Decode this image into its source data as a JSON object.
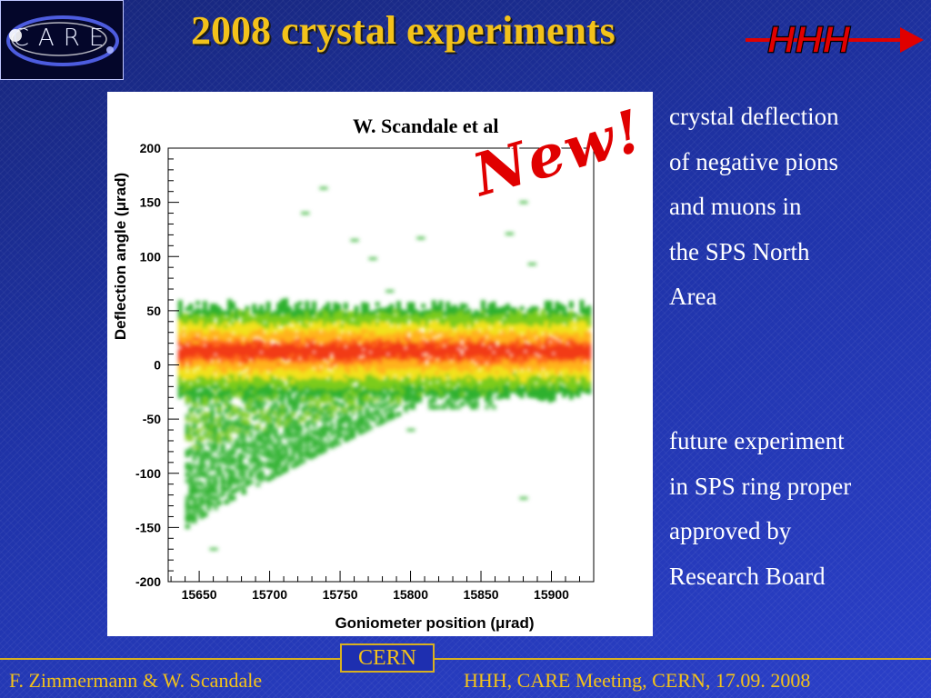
{
  "slide": {
    "title": "2008 crystal experiments",
    "logo_text": "CARE",
    "hhh_text": "HHH",
    "credit": "W. Scandale et al",
    "new_stamp": "New!",
    "side_text_1": [
      "crystal deflection",
      "of negative pions",
      "and muons in",
      "the SPS North",
      "Area"
    ],
    "side_text_2": [
      "future experiment",
      "in SPS ring proper",
      "approved by",
      "Research Board"
    ],
    "cern_label": "CERN",
    "footer_left": "F. Zimmermann & W. Scandale",
    "footer_right": "HHH, CARE Meeting, CERN, 17.09. 2008"
  },
  "colors": {
    "title": "#f3c21a",
    "footer": "#f3c21a",
    "background": "#1e2fb0",
    "accent_red": "#e00000"
  },
  "chart_data": {
    "type": "heatmap",
    "title": "",
    "xlabel": "Goniometer position (μrad)",
    "ylabel": "Deflection angle (μrad)",
    "xlim": [
      15628,
      15930
    ],
    "ylim": [
      -200,
      200
    ],
    "xticks": [
      15650,
      15700,
      15750,
      15800,
      15850,
      15900
    ],
    "yticks": [
      -200,
      -150,
      -100,
      -50,
      0,
      50,
      100,
      150,
      200
    ],
    "colorscale": [
      "#2eb12e",
      "#7ccc1e",
      "#f2e21a",
      "#ffb21a",
      "#ff6a1a",
      "#f23a14"
    ],
    "band": {
      "center_y": 12,
      "core_halfwidth": 10,
      "yellow_halfwidth": 25,
      "green_halfwidth": 40
    },
    "tail": {
      "x_start": 15640,
      "x_end": 15800,
      "y_min_at_start": -150,
      "y_min_at_end": -40
    },
    "outliers": [
      [
        15738,
        163
      ],
      [
        15725,
        140
      ],
      [
        15880,
        150
      ],
      [
        15870,
        121
      ],
      [
        15773,
        98
      ],
      [
        15886,
        93
      ],
      [
        15760,
        115
      ],
      [
        15785,
        68
      ],
      [
        15888,
        52
      ],
      [
        15807,
        117
      ],
      [
        15880,
        -123
      ],
      [
        15660,
        -170
      ],
      [
        15800,
        -60
      ]
    ]
  }
}
